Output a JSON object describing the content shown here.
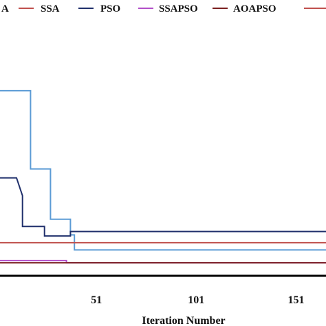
{
  "chart_data": {
    "type": "line",
    "xlabel": "Iteration Number",
    "ylabel": "",
    "xlim": [
      1,
      166
    ],
    "ylim": [
      0,
      480
    ],
    "x_ticks": [
      51,
      101,
      151
    ],
    "grid": false,
    "legend_position": "top",
    "series": [
      {
        "name": "A",
        "color": "#5b9bd5",
        "x": [
          1,
          18,
          18,
          28,
          28,
          38,
          38,
          40,
          40,
          166
        ],
        "y": [
          330,
          330,
          190,
          190,
          100,
          100,
          72,
          72,
          45,
          45
        ]
      },
      {
        "name": "SSA",
        "color": "#c0504d",
        "x": [
          1,
          166
        ],
        "y": [
          58,
          58
        ]
      },
      {
        "name": "PSO",
        "color": "#1f2f6b",
        "x": [
          1,
          11,
          11,
          14,
          14,
          25,
          25,
          38,
          38,
          166
        ],
        "y": [
          174,
          174,
          174,
          142,
          87,
          87,
          70,
          70,
          78,
          78
        ]
      },
      {
        "name": "SSAPSO",
        "color": "#b24fc8",
        "x": [
          1,
          36,
          36,
          166
        ],
        "y": [
          26,
          26,
          22,
          22
        ]
      },
      {
        "name": "AOAPSO",
        "color": "#7a1f1f",
        "x": [
          1,
          166
        ],
        "y": [
          22,
          22
        ]
      },
      {
        "name": "",
        "color": "#c0504d",
        "x": [],
        "y": []
      }
    ]
  }
}
